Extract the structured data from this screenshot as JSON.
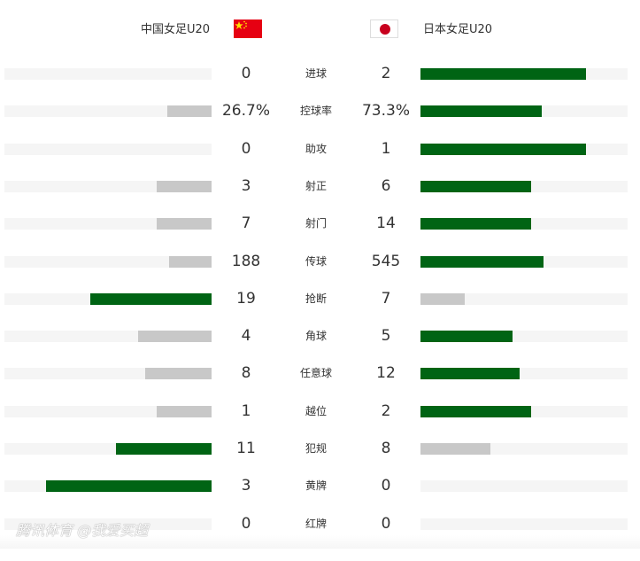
{
  "home": {
    "name": "中国女足U20",
    "flag": "china-flag"
  },
  "away": {
    "name": "日本女足U20",
    "flag": "japan-flag"
  },
  "colors": {
    "leader": "#006414",
    "trailer": "#c8c8c8",
    "track": "#f5f5f5"
  },
  "stats": [
    {
      "label": "进球",
      "home": "0",
      "away": "2",
      "hv": 0,
      "av": 2
    },
    {
      "label": "控球率",
      "home": "26.7%",
      "away": "73.3%",
      "hv": 26.7,
      "av": 73.3
    },
    {
      "label": "助攻",
      "home": "0",
      "away": "1",
      "hv": 0,
      "av": 1
    },
    {
      "label": "射正",
      "home": "3",
      "away": "6",
      "hv": 3,
      "av": 6
    },
    {
      "label": "射门",
      "home": "7",
      "away": "14",
      "hv": 7,
      "av": 14
    },
    {
      "label": "传球",
      "home": "188",
      "away": "545",
      "hv": 188,
      "av": 545
    },
    {
      "label": "抢断",
      "home": "19",
      "away": "7",
      "hv": 19,
      "av": 7
    },
    {
      "label": "角球",
      "home": "4",
      "away": "5",
      "hv": 4,
      "av": 5
    },
    {
      "label": "任意球",
      "home": "8",
      "away": "12",
      "hv": 8,
      "av": 12
    },
    {
      "label": "越位",
      "home": "1",
      "away": "2",
      "hv": 1,
      "av": 2
    },
    {
      "label": "犯规",
      "home": "11",
      "away": "8",
      "hv": 11,
      "av": 8
    },
    {
      "label": "黄牌",
      "home": "3",
      "away": "0",
      "hv": 3,
      "av": 0
    },
    {
      "label": "红牌",
      "home": "0",
      "away": "0",
      "hv": 0,
      "av": 0
    }
  ],
  "watermark": "腾讯体育 @我爱买超"
}
